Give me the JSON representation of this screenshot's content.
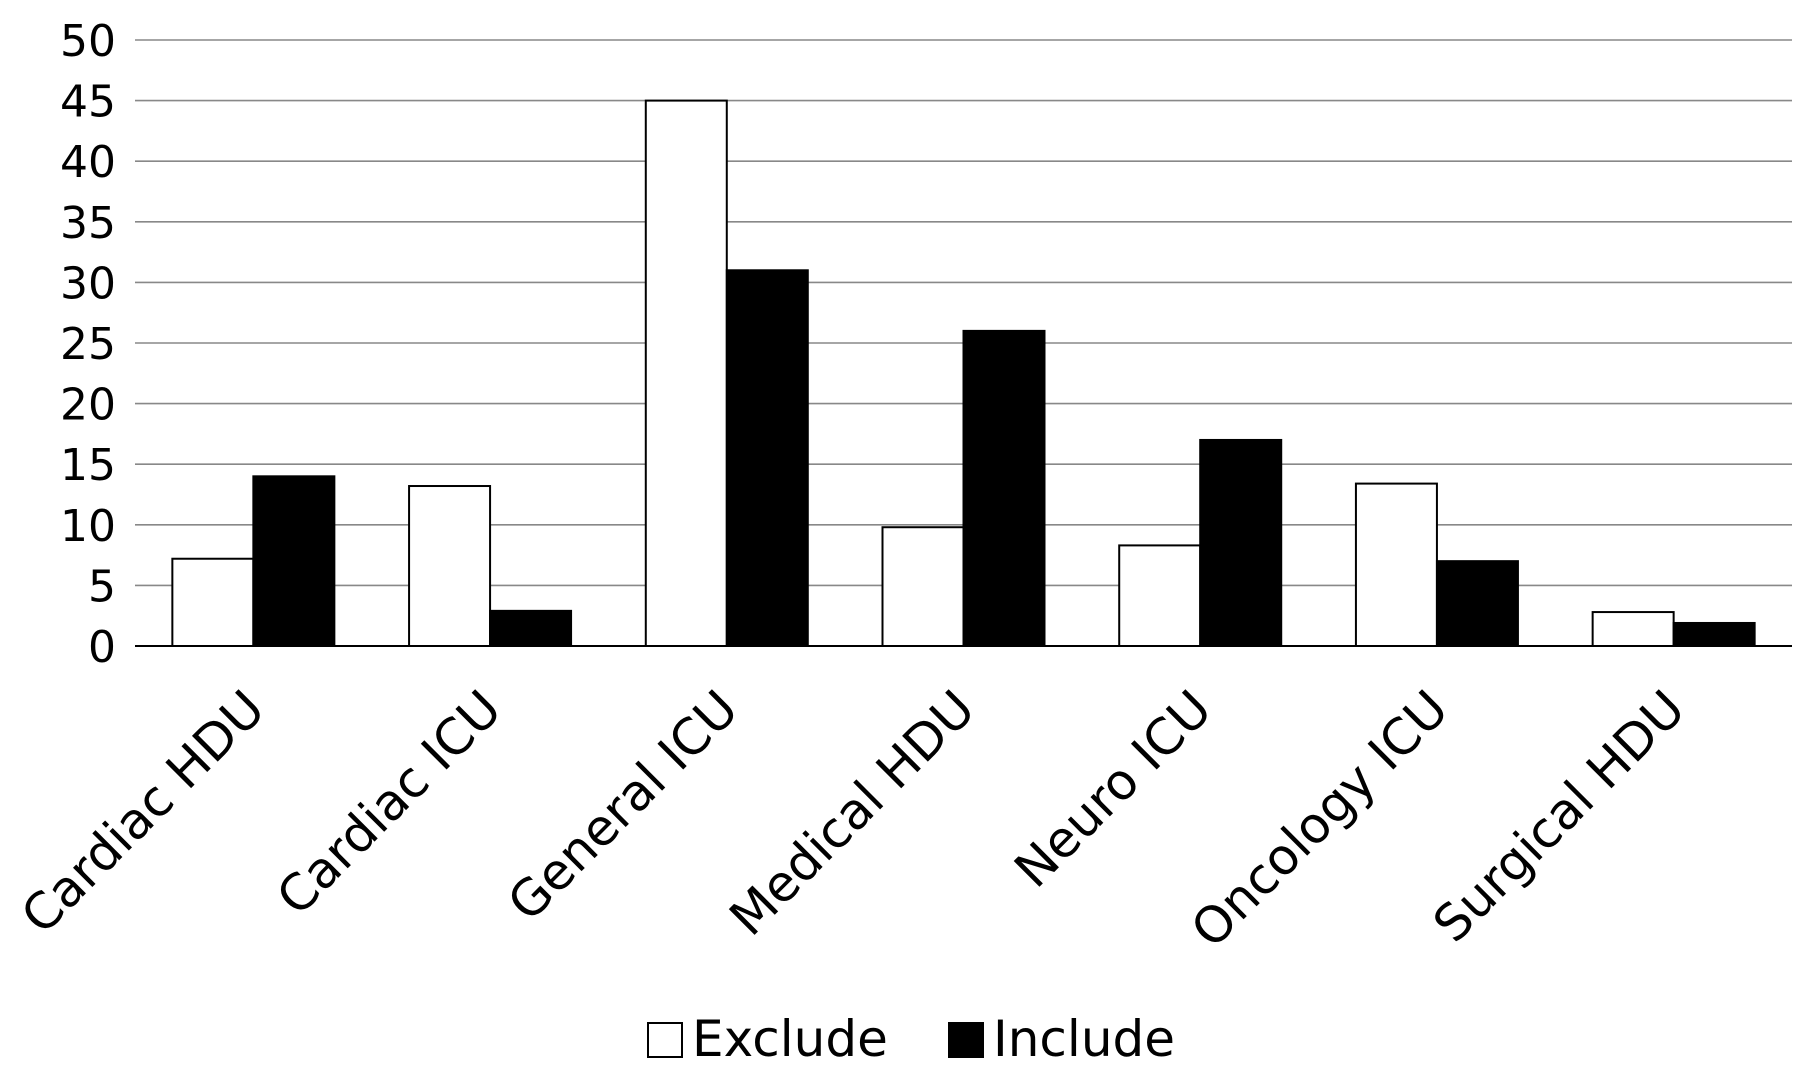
{
  "chart_data": {
    "type": "bar",
    "title": "",
    "xlabel": "",
    "ylabel": "",
    "categories": [
      "Cardiac HDU",
      "Cardiac ICU",
      "General ICU",
      "Medical HDU",
      "Neuro ICU",
      "Oncology ICU",
      "Surgical HDU"
    ],
    "series": [
      {
        "name": "Exclude",
        "color": "#ffffff",
        "values": [
          7.2,
          13.2,
          45,
          9.8,
          8.3,
          13.4,
          2.8
        ]
      },
      {
        "name": "Include",
        "color": "#000000",
        "values": [
          14,
          2.9,
          31,
          26,
          17,
          7,
          1.9
        ]
      }
    ],
    "ylim": [
      0,
      50
    ],
    "yticks": [
      0,
      5,
      10,
      15,
      20,
      25,
      30,
      35,
      40,
      45,
      50
    ],
    "grid": true,
    "legend_position": "bottom-center"
  }
}
